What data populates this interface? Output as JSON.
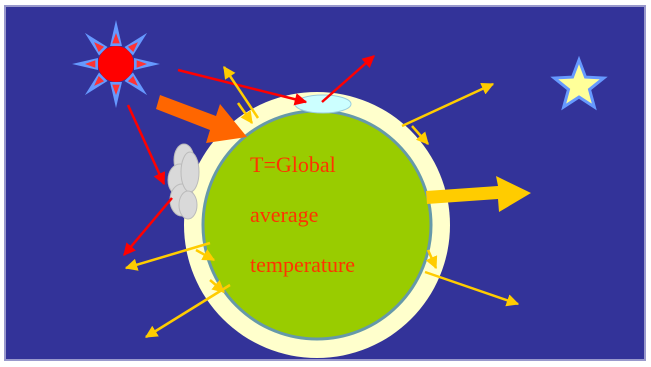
{
  "diagram": {
    "label_line_1": "T=Global",
    "label_line_2": "average",
    "label_line_3": "temperature"
  },
  "colors": {
    "sky": "#333399",
    "frame_border": "#9999cc",
    "earth": "#99cc00",
    "earth_outline": "#6699aa",
    "atmosphere": "#ffffcc",
    "label": "#ff3300",
    "sun_body": "#ff0000",
    "sun_rays": "#6699ff",
    "star": "#ffff99",
    "red_arrow": "#ff0000",
    "yellow_arrow": "#ffcc00",
    "big_orange_arrow": "#ff6600",
    "cloud": "#d9d9d9",
    "ice": "#ccffff"
  },
  "icons": [
    "sun-icon",
    "star-icon",
    "cloud-icon",
    "ice-cap-icon"
  ]
}
